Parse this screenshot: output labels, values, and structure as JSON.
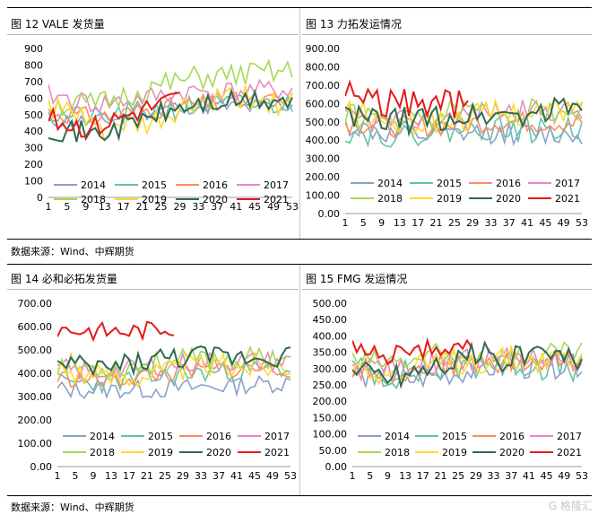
{
  "source_label": "数据来源：Wind、中辉期货",
  "watermark": "G 格隆汇",
  "series_names": [
    "2014",
    "2015",
    "2016",
    "2017",
    "2018",
    "2019",
    "2020",
    "2021"
  ],
  "series_colors": [
    "#8da0cb",
    "#66c2a5",
    "#fc8d62",
    "#e78ac3",
    "#a6d854",
    "#ffd92f",
    "#2e6b4f",
    "#e41a1c"
  ],
  "chart_data": [
    {
      "type": "line",
      "title": "图 12 VALE 发货量",
      "yticks": [
        "0",
        "100",
        "200",
        "300",
        "400",
        "500",
        "600",
        "700",
        "800",
        "900"
      ],
      "ylim": [
        0,
        900
      ],
      "xticks": [
        "1",
        "5",
        "9",
        "13",
        "17",
        "21",
        "25",
        "29",
        "33",
        "37",
        "41",
        "45",
        "49",
        "53"
      ],
      "series": [
        {
          "name": "2014",
          "seed": 11,
          "base": [
            470,
            450,
            520,
            560,
            540,
            560
          ],
          "amp": 55,
          "len": 53
        },
        {
          "name": "2015",
          "seed": 21,
          "base": [
            500,
            480,
            520,
            550,
            560,
            560
          ],
          "amp": 70,
          "len": 53
        },
        {
          "name": "2016",
          "seed": 31,
          "base": [
            520,
            480,
            530,
            560,
            580,
            580
          ],
          "amp": 60,
          "len": 53
        },
        {
          "name": "2017",
          "seed": 41,
          "base": [
            620,
            560,
            600,
            640,
            640,
            650
          ],
          "amp": 65,
          "len": 53
        },
        {
          "name": "2018",
          "seed": 51,
          "base": [
            560,
            560,
            650,
            720,
            740,
            760
          ],
          "amp": 75,
          "len": 53
        },
        {
          "name": "2019",
          "seed": 61,
          "base": [
            560,
            420,
            420,
            560,
            600,
            560
          ],
          "amp": 80,
          "len": 53
        },
        {
          "name": "2020",
          "seed": 71,
          "base": [
            420,
            380,
            480,
            560,
            580,
            580
          ],
          "amp": 70,
          "len": 53
        },
        {
          "name": "2021",
          "seed": 81,
          "base": [
            470,
            420,
            520,
            600
          ],
          "amp": 70,
          "len": 29
        }
      ]
    },
    {
      "type": "line",
      "title": "图 13 力拓发运情况",
      "yticks": [
        "0.00",
        "100.00",
        "200.00",
        "300.00",
        "400.00",
        "500.00",
        "600.00",
        "700.00",
        "800.00",
        "900.00"
      ],
      "ylim": [
        0,
        900
      ],
      "xticks": [
        "1",
        "5",
        "9",
        "13",
        "17",
        "21",
        "25",
        "29",
        "33",
        "37",
        "41",
        "45",
        "49",
        "53"
      ],
      "series": [
        {
          "name": "2014",
          "seed": 12,
          "base": [
            480,
            420,
            420,
            440,
            430,
            430
          ],
          "amp": 60,
          "len": 53
        },
        {
          "name": "2015",
          "seed": 22,
          "base": [
            450,
            430,
            450,
            470,
            450,
            460
          ],
          "amp": 70,
          "len": 53
        },
        {
          "name": "2016",
          "seed": 32,
          "base": [
            500,
            470,
            480,
            500,
            500,
            500
          ],
          "amp": 60,
          "len": 53
        },
        {
          "name": "2017",
          "seed": 42,
          "base": [
            520,
            500,
            520,
            560,
            560,
            560
          ],
          "amp": 60,
          "len": 53
        },
        {
          "name": "2018",
          "seed": 52,
          "base": [
            540,
            500,
            540,
            560,
            560,
            560
          ],
          "amp": 70,
          "len": 53
        },
        {
          "name": "2019",
          "seed": 62,
          "base": [
            560,
            500,
            500,
            540,
            560,
            560
          ],
          "amp": 75,
          "len": 53
        },
        {
          "name": "2020",
          "seed": 72,
          "base": [
            520,
            500,
            520,
            540,
            540,
            600
          ],
          "amp": 75,
          "len": 53
        },
        {
          "name": "2021",
          "seed": 82,
          "base": [
            680,
            600,
            600,
            600
          ],
          "amp": 80,
          "len": 28
        }
      ]
    },
    {
      "type": "line",
      "title": "图 14 必和必拓发货量",
      "yticks": [
        "0.00",
        "100.00",
        "200.00",
        "300.00",
        "400.00",
        "500.00",
        "600.00",
        "700.00"
      ],
      "ylim": [
        0,
        700
      ],
      "xticks": [
        "1",
        "5",
        "9",
        "13",
        "17",
        "21",
        "25",
        "29",
        "33",
        "37",
        "41",
        "45",
        "49",
        "53"
      ],
      "series": [
        {
          "name": "2014",
          "seed": 13,
          "base": [
            330,
            330,
            330,
            340,
            350,
            360
          ],
          "amp": 40,
          "len": 53
        },
        {
          "name": "2015",
          "seed": 23,
          "base": [
            360,
            360,
            380,
            400,
            410,
            420
          ],
          "amp": 45,
          "len": 53
        },
        {
          "name": "2016",
          "seed": 33,
          "base": [
            380,
            370,
            390,
            410,
            420,
            420
          ],
          "amp": 40,
          "len": 53
        },
        {
          "name": "2017",
          "seed": 43,
          "base": [
            420,
            400,
            430,
            450,
            450,
            450
          ],
          "amp": 45,
          "len": 53
        },
        {
          "name": "2018",
          "seed": 53,
          "base": [
            440,
            420,
            440,
            460,
            460,
            480
          ],
          "amp": 50,
          "len": 53
        },
        {
          "name": "2019",
          "seed": 63,
          "base": [
            430,
            380,
            400,
            430,
            430,
            440
          ],
          "amp": 55,
          "len": 53
        },
        {
          "name": "2020",
          "seed": 73,
          "base": [
            430,
            420,
            460,
            470,
            470,
            480
          ],
          "amp": 50,
          "len": 53
        },
        {
          "name": "2021",
          "seed": 83,
          "base": [
            590,
            580,
            580,
            600
          ],
          "amp": 40,
          "len": 27
        }
      ]
    },
    {
      "type": "line",
      "title": "图 15 FMG 发运情况",
      "yticks": [
        "0.00",
        "50.00",
        "100.00",
        "150.00",
        "200.00",
        "250.00",
        "300.00",
        "350.00",
        "400.00",
        "450.00",
        "500.00"
      ],
      "ylim": [
        0,
        500
      ],
      "xticks": [
        "1",
        "5",
        "9",
        "13",
        "17",
        "21",
        "25",
        "29",
        "33",
        "37",
        "41",
        "45",
        "49",
        "53"
      ],
      "series": [
        {
          "name": "2014",
          "seed": 14,
          "base": [
            280,
            260,
            280,
            300,
            300,
            310
          ],
          "amp": 35,
          "len": 53
        },
        {
          "name": "2015",
          "seed": 24,
          "base": [
            300,
            280,
            300,
            320,
            310,
            300
          ],
          "amp": 45,
          "len": 53
        },
        {
          "name": "2016",
          "seed": 34,
          "base": [
            300,
            290,
            310,
            320,
            320,
            320
          ],
          "amp": 35,
          "len": 53
        },
        {
          "name": "2017",
          "seed": 44,
          "base": [
            310,
            300,
            320,
            330,
            330,
            330
          ],
          "amp": 35,
          "len": 53
        },
        {
          "name": "2018",
          "seed": 54,
          "base": [
            320,
            320,
            340,
            340,
            340,
            340
          ],
          "amp": 40,
          "len": 53
        },
        {
          "name": "2019",
          "seed": 64,
          "base": [
            320,
            280,
            320,
            330,
            330,
            330
          ],
          "amp": 45,
          "len": 53
        },
        {
          "name": "2020",
          "seed": 74,
          "base": [
            290,
            280,
            320,
            340,
            330,
            340
          ],
          "amp": 45,
          "len": 53
        },
        {
          "name": "2021",
          "seed": 84,
          "base": [
            360,
            340,
            360,
            380
          ],
          "amp": 30,
          "len": 28
        }
      ]
    }
  ]
}
